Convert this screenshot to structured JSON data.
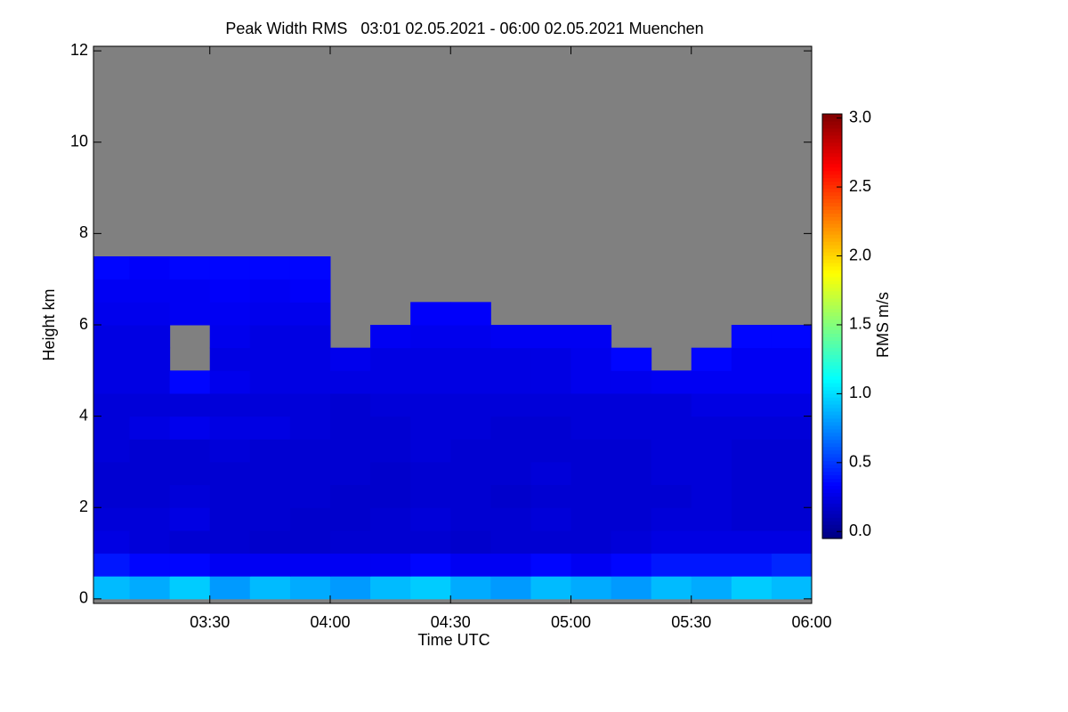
{
  "chart_data": {
    "type": "heatmap",
    "title": "Peak Width RMS   03:01 02.05.2021 - 06:00 02.05.2021 Muenchen",
    "x_label": "Time UTC",
    "y_label": "Height km",
    "colorbar_label": "RMS m/s",
    "xlim": [
      "03:01",
      "06:00"
    ],
    "xticks": [
      "03:30",
      "04:00",
      "04:30",
      "05:00",
      "05:30",
      "06:00"
    ],
    "ylim": [
      -0.1,
      12.1
    ],
    "yticks": [
      0,
      2,
      4,
      6,
      8,
      10,
      12
    ],
    "clim": [
      -0.05,
      3.03
    ],
    "cticks": [
      {
        "value": 0,
        "label": "0.0"
      },
      {
        "value": 0.5,
        "label": "0.5"
      },
      {
        "value": 1,
        "label": "1.0"
      },
      {
        "value": 1.5,
        "label": "1.5"
      },
      {
        "value": 2,
        "label": "2.0"
      },
      {
        "value": 2.5,
        "label": "2.5"
      },
      {
        "value": 3,
        "label": "3.0"
      }
    ],
    "colormap": "jet",
    "missing_color": "#808080",
    "x": [
      "03:05",
      "03:15",
      "03:25",
      "03:35",
      "03:45",
      "03:55",
      "04:05",
      "04:15",
      "04:25",
      "04:35",
      "04:45",
      "04:55",
      "05:05",
      "05:15",
      "05:25",
      "05:35",
      "05:45",
      "05:55"
    ],
    "y": [
      0.25,
      0.75,
      1.25,
      1.75,
      2.25,
      2.75,
      3.25,
      3.75,
      4.25,
      4.75,
      5.25,
      5.75,
      6.25,
      6.75,
      7.25
    ],
    "values": [
      [
        0.9,
        0.85,
        0.95,
        0.8,
        0.9,
        0.85,
        0.8,
        0.9,
        0.95,
        0.85,
        0.8,
        0.9,
        0.85,
        0.8,
        0.9,
        0.85,
        0.95,
        0.9
      ],
      [
        0.4,
        0.35,
        0.35,
        0.3,
        0.3,
        0.3,
        0.3,
        0.3,
        0.35,
        0.3,
        0.3,
        0.35,
        0.3,
        0.35,
        0.4,
        0.4,
        0.4,
        0.45
      ],
      [
        0.25,
        0.22,
        0.2,
        0.2,
        0.18,
        0.18,
        0.2,
        0.2,
        0.2,
        0.18,
        0.2,
        0.2,
        0.2,
        0.22,
        0.25,
        0.25,
        0.25,
        0.25
      ],
      [
        0.22,
        0.22,
        0.25,
        0.2,
        0.2,
        0.18,
        0.18,
        0.2,
        0.22,
        0.2,
        0.2,
        0.22,
        0.2,
        0.2,
        0.22,
        0.22,
        0.2,
        0.2
      ],
      [
        0.2,
        0.2,
        0.22,
        0.2,
        0.2,
        0.2,
        0.18,
        0.18,
        0.2,
        0.2,
        0.18,
        0.2,
        0.2,
        0.2,
        0.2,
        0.22,
        0.2,
        0.2
      ],
      [
        0.2,
        0.2,
        0.2,
        0.2,
        0.2,
        0.2,
        0.2,
        0.18,
        0.2,
        0.2,
        0.2,
        0.22,
        0.2,
        0.2,
        0.22,
        0.22,
        0.2,
        0.2
      ],
      [
        0.22,
        0.2,
        0.2,
        0.22,
        0.2,
        0.2,
        0.2,
        0.2,
        0.22,
        0.2,
        0.2,
        0.2,
        0.2,
        0.2,
        0.22,
        0.22,
        0.2,
        0.2
      ],
      [
        0.22,
        0.25,
        0.28,
        0.25,
        0.25,
        0.22,
        0.2,
        0.2,
        0.22,
        0.22,
        0.2,
        0.2,
        0.22,
        0.22,
        0.22,
        0.22,
        0.22,
        0.22
      ],
      [
        0.22,
        0.22,
        0.22,
        0.22,
        0.22,
        0.22,
        0.2,
        0.22,
        0.22,
        0.22,
        0.22,
        0.22,
        0.22,
        0.22,
        0.22,
        0.25,
        0.25,
        0.25
      ],
      [
        0.25,
        0.25,
        0.35,
        0.28,
        0.25,
        0.25,
        0.25,
        0.25,
        0.25,
        0.25,
        0.25,
        0.25,
        0.28,
        0.28,
        0.3,
        0.3,
        0.3,
        0.3
      ],
      [
        0.25,
        0.25,
        null,
        0.25,
        0.25,
        0.25,
        0.28,
        0.25,
        0.25,
        0.25,
        0.25,
        0.25,
        0.28,
        0.35,
        null,
        0.35,
        0.3,
        0.3
      ],
      [
        0.25,
        0.25,
        null,
        0.28,
        0.25,
        0.25,
        null,
        0.3,
        0.28,
        0.28,
        0.3,
        0.3,
        0.3,
        null,
        null,
        null,
        0.35,
        0.35
      ],
      [
        0.28,
        0.28,
        0.3,
        0.3,
        0.28,
        0.28,
        null,
        null,
        0.32,
        0.32,
        null,
        null,
        null,
        null,
        null,
        null,
        null,
        null
      ],
      [
        0.3,
        0.3,
        0.3,
        0.32,
        0.3,
        0.32,
        null,
        null,
        null,
        null,
        null,
        null,
        null,
        null,
        null,
        null,
        null,
        null
      ],
      [
        0.35,
        0.32,
        0.35,
        0.35,
        0.35,
        0.35,
        null,
        null,
        null,
        null,
        null,
        null,
        null,
        null,
        null,
        null,
        null,
        null
      ]
    ]
  }
}
